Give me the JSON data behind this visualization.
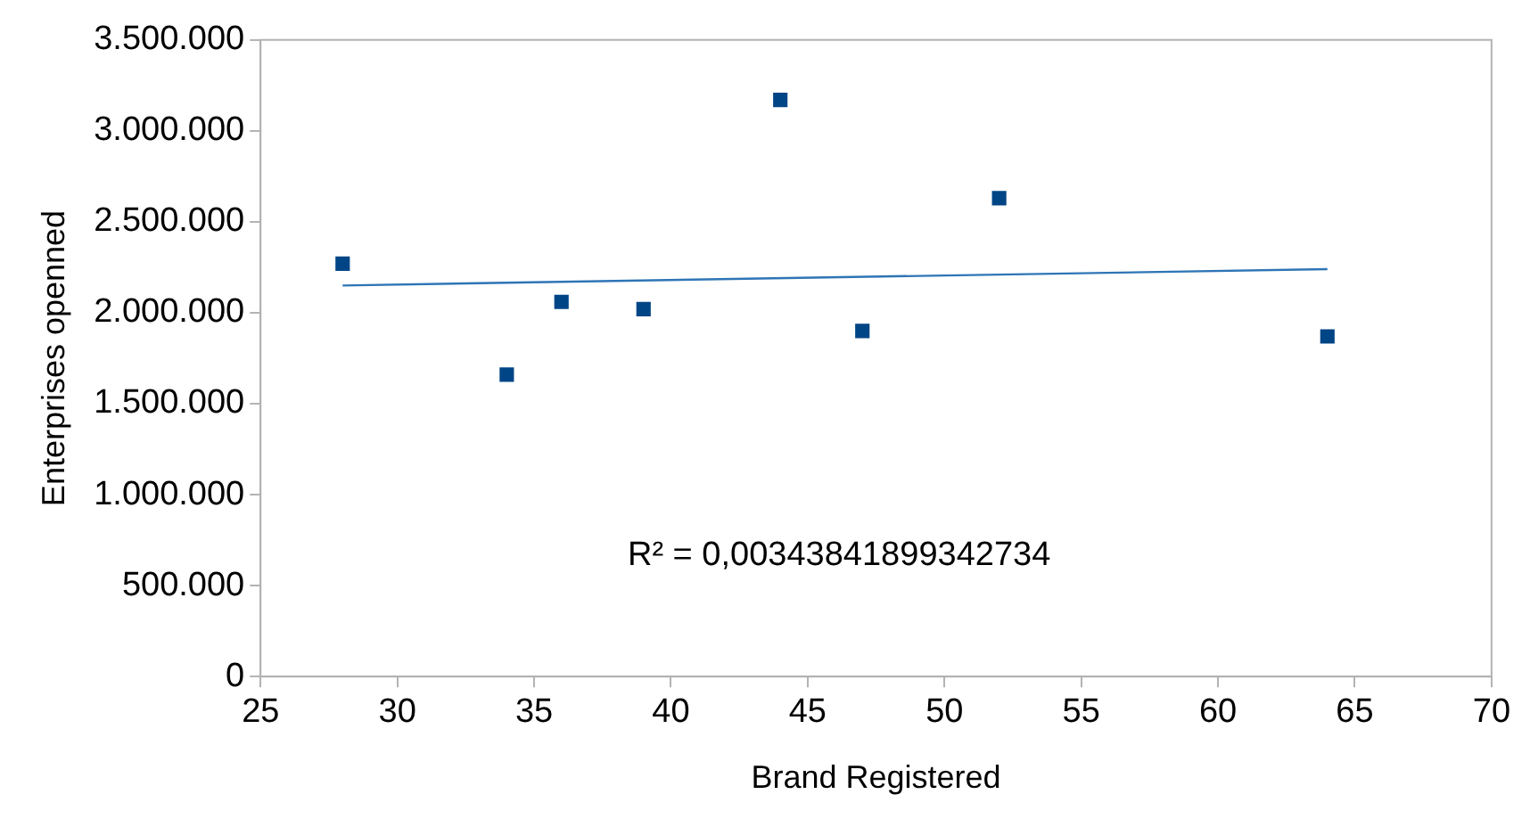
{
  "chart_data": {
    "type": "scatter",
    "xlabel": "Brand Registered",
    "ylabel": "Enterprises openned",
    "legend": false,
    "grid": false,
    "xlim": [
      25,
      70
    ],
    "xticks": [
      25,
      30,
      35,
      40,
      45,
      50,
      55,
      60,
      65,
      70
    ],
    "ylim": [
      0,
      3500000
    ],
    "yticks": [
      {
        "value": 0,
        "label": "0"
      },
      {
        "value": 500000,
        "label": "500.000"
      },
      {
        "value": 1000000,
        "label": "1.000.000"
      },
      {
        "value": 1500000,
        "label": "1.500.000"
      },
      {
        "value": 2000000,
        "label": "2.000.000"
      },
      {
        "value": 2500000,
        "label": "2.500.000"
      },
      {
        "value": 3000000,
        "label": "3.000.000"
      },
      {
        "value": 3500000,
        "label": "3.500.000"
      }
    ],
    "series": [
      {
        "type": "scatter",
        "color": "#004586",
        "marker": "square",
        "x": [
          28,
          34,
          36,
          39,
          44,
          47,
          52,
          64
        ],
        "values": [
          2270000,
          1660000,
          2060000,
          2020000,
          3170000,
          1900000,
          2630000,
          1870000
        ]
      },
      {
        "type": "line",
        "color": "#2e75b6",
        "marker": "none",
        "line_style": "solid",
        "x": [
          28,
          64
        ],
        "values": [
          2150000,
          2240000
        ]
      }
    ],
    "annotations": [
      "R² = 0,00343841899342734"
    ]
  }
}
